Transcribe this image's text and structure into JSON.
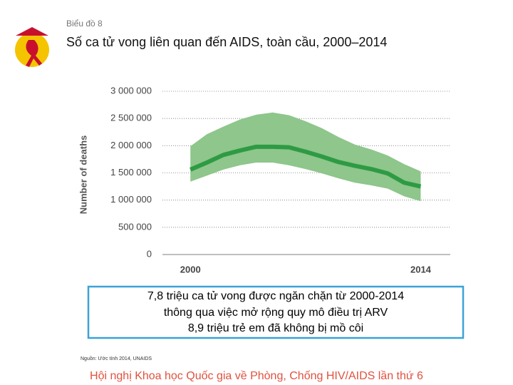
{
  "slide": {
    "label": "Biểu đồ 8",
    "title": "Số ca tử vong liên quan đến AIDS, toàn cầu, 2000–2014",
    "box_lines": [
      "7,8 triệu ca tử vong được ngăn chặn từ  2000-2014",
      "thông qua việc mở rộng quy mô điều trị ARV",
      "8,9 triệu trẻ em đã không bị mồ côi"
    ],
    "source": "Nguồn: Ước tính 2014, UNAIDS",
    "footer": "Hội nghị Khoa học Quốc gia về Phòng, Chống HIV/AIDS lần thứ 6"
  },
  "chart_data": {
    "type": "line",
    "y_label": "Number of deaths",
    "x": [
      2000,
      2001,
      2002,
      2003,
      2004,
      2005,
      2006,
      2007,
      2008,
      2009,
      2010,
      2011,
      2012,
      2013,
      2014
    ],
    "series": [
      {
        "color": "#2e9b44",
        "band_color": "#8ec68b",
        "values": [
          1560000,
          1690000,
          1830000,
          1910000,
          1980000,
          1980000,
          1970000,
          1890000,
          1800000,
          1700000,
          1630000,
          1570000,
          1490000,
          1320000,
          1250000
        ],
        "upper": [
          1990000,
          2210000,
          2350000,
          2480000,
          2570000,
          2610000,
          2560000,
          2450000,
          2320000,
          2160000,
          2020000,
          1930000,
          1820000,
          1660000,
          1530000
        ],
        "lower": [
          1340000,
          1450000,
          1560000,
          1640000,
          1690000,
          1690000,
          1640000,
          1570000,
          1490000,
          1400000,
          1320000,
          1270000,
          1210000,
          1070000,
          980000
        ]
      }
    ],
    "xlim": [
      1998.3,
      2015.8
    ],
    "xticks": [
      2000,
      2014
    ],
    "ylim": [
      0,
      3000000
    ],
    "yticks": [
      0,
      {
        "value": 500000,
        "label": "500 000"
      },
      {
        "value": 1000000,
        "label": "1 000 000"
      },
      {
        "value": 1500000,
        "label": "1 500 000"
      },
      {
        "value": 2000000,
        "label": "2 000 000"
      },
      {
        "value": 2500000,
        "label": "2 500 000"
      },
      {
        "value": 3000000,
        "label": "3 000 000"
      }
    ],
    "grid": true
  }
}
